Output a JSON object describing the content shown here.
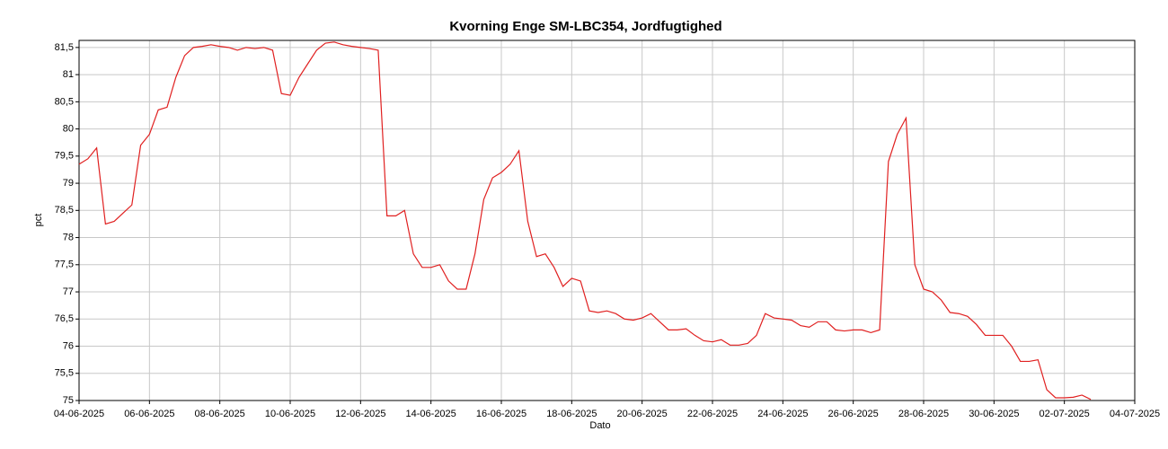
{
  "chart_data": {
    "type": "line",
    "title": "Kvorning Enge SM-LBC354, Jordfugtighed",
    "xlabel": "Dato",
    "ylabel": "pct",
    "x": [
      "2025-06-04T00:00",
      "2025-06-04T06:00",
      "2025-06-04T12:00",
      "2025-06-04T18:00",
      "2025-06-05T00:00",
      "2025-06-05T06:00",
      "2025-06-05T12:00",
      "2025-06-05T18:00",
      "2025-06-06T00:00",
      "2025-06-06T06:00",
      "2025-06-06T12:00",
      "2025-06-06T18:00",
      "2025-06-07T00:00",
      "2025-06-07T06:00",
      "2025-06-07T12:00",
      "2025-06-07T18:00",
      "2025-06-08T00:00",
      "2025-06-08T06:00",
      "2025-06-08T12:00",
      "2025-06-08T18:00",
      "2025-06-09T00:00",
      "2025-06-09T06:00",
      "2025-06-09T12:00",
      "2025-06-09T18:00",
      "2025-06-10T00:00",
      "2025-06-10T06:00",
      "2025-06-10T12:00",
      "2025-06-10T18:00",
      "2025-06-11T00:00",
      "2025-06-11T06:00",
      "2025-06-11T12:00",
      "2025-06-11T18:00",
      "2025-06-12T00:00",
      "2025-06-12T06:00",
      "2025-06-12T12:00",
      "2025-06-12T18:00",
      "2025-06-13T00:00",
      "2025-06-13T06:00",
      "2025-06-13T12:00",
      "2025-06-13T18:00",
      "2025-06-14T00:00",
      "2025-06-14T06:00",
      "2025-06-14T12:00",
      "2025-06-14T18:00",
      "2025-06-15T00:00",
      "2025-06-15T06:00",
      "2025-06-15T12:00",
      "2025-06-15T18:00",
      "2025-06-16T00:00",
      "2025-06-16T06:00",
      "2025-06-16T12:00",
      "2025-06-16T18:00",
      "2025-06-17T00:00",
      "2025-06-17T06:00",
      "2025-06-17T12:00",
      "2025-06-17T18:00",
      "2025-06-18T00:00",
      "2025-06-18T06:00",
      "2025-06-18T12:00",
      "2025-06-18T18:00",
      "2025-06-19T00:00",
      "2025-06-19T06:00",
      "2025-06-19T12:00",
      "2025-06-19T18:00",
      "2025-06-20T00:00",
      "2025-06-20T06:00",
      "2025-06-20T12:00",
      "2025-06-20T18:00",
      "2025-06-21T00:00",
      "2025-06-21T06:00",
      "2025-06-21T12:00",
      "2025-06-21T18:00",
      "2025-06-22T00:00",
      "2025-06-22T06:00",
      "2025-06-22T12:00",
      "2025-06-22T18:00",
      "2025-06-23T00:00",
      "2025-06-23T06:00",
      "2025-06-23T12:00",
      "2025-06-23T18:00",
      "2025-06-24T00:00",
      "2025-06-24T06:00",
      "2025-06-24T12:00",
      "2025-06-24T18:00",
      "2025-06-25T00:00",
      "2025-06-25T06:00",
      "2025-06-25T12:00",
      "2025-06-25T18:00",
      "2025-06-26T00:00",
      "2025-06-26T06:00",
      "2025-06-26T12:00",
      "2025-06-26T18:00",
      "2025-06-27T00:00",
      "2025-06-27T06:00",
      "2025-06-27T12:00",
      "2025-06-27T18:00",
      "2025-06-28T00:00",
      "2025-06-28T06:00",
      "2025-06-28T12:00",
      "2025-06-28T18:00",
      "2025-06-29T00:00",
      "2025-06-29T06:00",
      "2025-06-29T12:00",
      "2025-06-29T18:00",
      "2025-06-30T00:00",
      "2025-06-30T06:00",
      "2025-06-30T12:00",
      "2025-06-30T18:00",
      "2025-07-01T00:00",
      "2025-07-01T06:00",
      "2025-07-01T12:00",
      "2025-07-01T18:00",
      "2025-07-02T00:00",
      "2025-07-02T06:00",
      "2025-07-02T12:00",
      "2025-07-02T18:00"
    ],
    "series": [
      {
        "color": "#e02020",
        "values": [
          79.35,
          79.45,
          79.65,
          78.25,
          78.3,
          78.45,
          78.6,
          79.7,
          79.9,
          80.35,
          80.4,
          80.95,
          81.35,
          81.5,
          81.52,
          81.55,
          81.52,
          81.5,
          81.45,
          81.5,
          81.48,
          81.5,
          81.45,
          80.65,
          80.62,
          80.95,
          81.2,
          81.45,
          81.58,
          81.6,
          81.55,
          81.52,
          81.5,
          81.48,
          81.45,
          78.4,
          78.4,
          78.5,
          77.7,
          77.45,
          77.45,
          77.5,
          77.2,
          77.05,
          77.05,
          77.7,
          78.7,
          79.1,
          79.2,
          79.35,
          79.6,
          78.3,
          77.65,
          77.7,
          77.45,
          77.1,
          77.25,
          77.2,
          76.65,
          76.62,
          76.65,
          76.6,
          76.5,
          76.48,
          76.52,
          76.6,
          76.45,
          76.3,
          76.3,
          76.32,
          76.2,
          76.1,
          76.08,
          76.12,
          76.02,
          76.02,
          76.05,
          76.2,
          76.6,
          76.52,
          76.5,
          76.48,
          76.38,
          76.35,
          76.45,
          76.45,
          76.3,
          76.28,
          76.3,
          76.3,
          76.25,
          76.3,
          79.4,
          79.9,
          80.2,
          77.5,
          77.05,
          77.0,
          76.85,
          76.62,
          76.6,
          76.55,
          76.4,
          76.2,
          76.2,
          76.2,
          76.0,
          75.72,
          75.72,
          75.75,
          75.2,
          75.05,
          75.05,
          75.06,
          75.1,
          75.02
        ]
      }
    ],
    "xlim": [
      "2025-06-04T00:00",
      "2025-07-04T00:00"
    ],
    "xticks": [
      {
        "value": "2025-06-04T00:00",
        "label": "04-06-2025"
      },
      {
        "value": "2025-06-06T00:00",
        "label": "06-06-2025"
      },
      {
        "value": "2025-06-08T00:00",
        "label": "08-06-2025"
      },
      {
        "value": "2025-06-10T00:00",
        "label": "10-06-2025"
      },
      {
        "value": "2025-06-12T00:00",
        "label": "12-06-2025"
      },
      {
        "value": "2025-06-14T00:00",
        "label": "14-06-2025"
      },
      {
        "value": "2025-06-16T00:00",
        "label": "16-06-2025"
      },
      {
        "value": "2025-06-18T00:00",
        "label": "18-06-2025"
      },
      {
        "value": "2025-06-20T00:00",
        "label": "20-06-2025"
      },
      {
        "value": "2025-06-22T00:00",
        "label": "22-06-2025"
      },
      {
        "value": "2025-06-24T00:00",
        "label": "24-06-2025"
      },
      {
        "value": "2025-06-26T00:00",
        "label": "26-06-2025"
      },
      {
        "value": "2025-06-28T00:00",
        "label": "28-06-2025"
      },
      {
        "value": "2025-06-30T00:00",
        "label": "30-06-2025"
      },
      {
        "value": "2025-07-02T00:00",
        "label": "02-07-2025"
      },
      {
        "value": "2025-07-04T00:00",
        "label": "04-07-2025"
      }
    ],
    "ylim": [
      75,
      81.63
    ],
    "yticks": [
      75,
      {
        "value": 75.5,
        "label": "75,5"
      },
      76,
      {
        "value": 76.5,
        "label": "76,5"
      },
      77,
      {
        "value": 77.5,
        "label": "77,5"
      },
      78,
      {
        "value": 78.5,
        "label": "78,5"
      },
      79,
      {
        "value": 79.5,
        "label": "79,5"
      },
      80,
      {
        "value": 80.5,
        "label": "80,5"
      },
      81,
      {
        "value": 81.5,
        "label": "81,5"
      }
    ],
    "grid": true
  }
}
